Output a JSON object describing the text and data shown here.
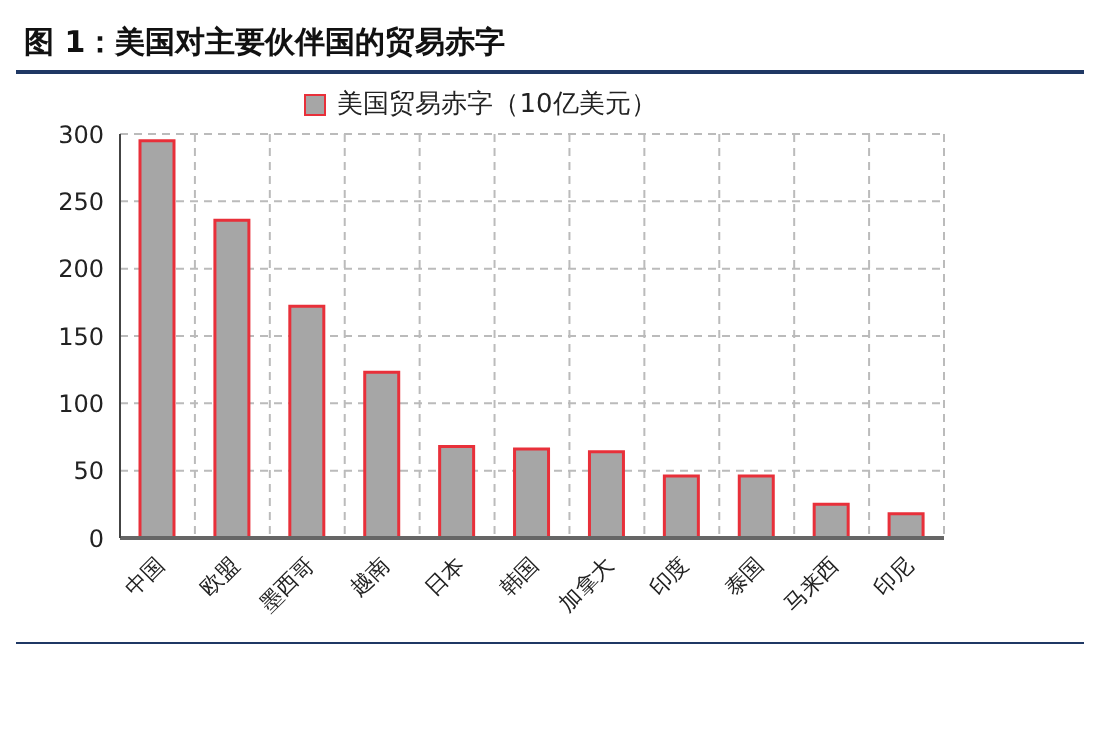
{
  "chart_data": {
    "type": "bar",
    "title": "图 1：美国对主要伙伴国的贸易赤字",
    "categories": [
      "中国",
      "欧盟",
      "墨西哥",
      "越南",
      "日本",
      "韩国",
      "加拿大",
      "印度",
      "泰国",
      "马来西",
      "印尼"
    ],
    "series": [
      {
        "name": "美国贸易赤字（10亿美元）",
        "color": "#a6a6a6",
        "values": [
          295,
          236,
          172,
          123,
          68,
          66,
          64,
          46,
          46,
          25,
          18
        ]
      }
    ],
    "ylim": [
      0,
      300
    ],
    "yticks": [
      0,
      50,
      100,
      150,
      200,
      250,
      300
    ],
    "grid": true,
    "legend": "top"
  }
}
